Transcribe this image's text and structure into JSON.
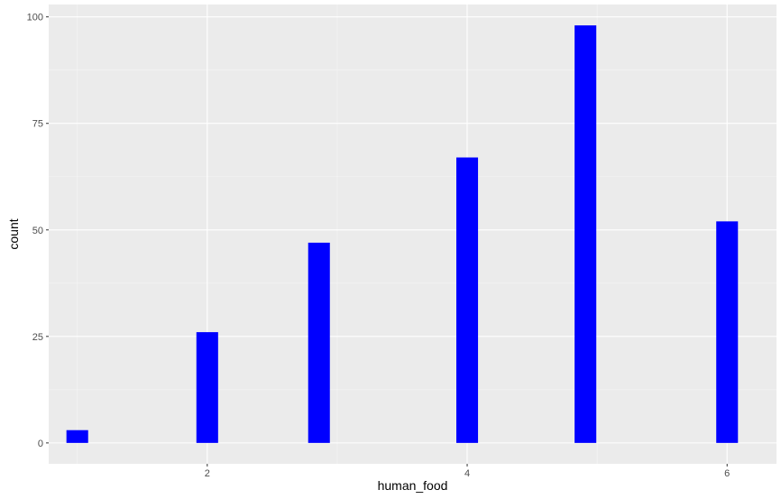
{
  "chart_data": {
    "type": "bar",
    "xlabel": "human_food",
    "ylabel": "count",
    "x_ticks": [
      2,
      4,
      6
    ],
    "y_ticks": [
      0,
      25,
      50,
      75,
      100
    ],
    "xlim": [
      0.78,
      6.38
    ],
    "ylim": [
      -4.9,
      102.9
    ],
    "bar_width": 0.167,
    "x": [
      1,
      2,
      2.86,
      4,
      4.91,
      6
    ],
    "values": [
      3,
      26,
      47,
      67,
      98,
      52
    ],
    "grid": true,
    "colors": {
      "panel_background": "#ebebeb",
      "major_grid": "#ffffff",
      "minor_grid": "#f5f5f5",
      "bar_fill": "#0000ff",
      "tick_text": "#4d4d4d",
      "axis_title": "#000000"
    }
  }
}
